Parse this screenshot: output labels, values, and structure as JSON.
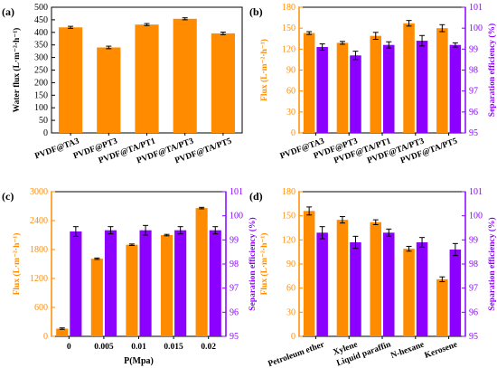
{
  "colors": {
    "orange": "#FF8C00",
    "purple": "#8B00FF",
    "axis": "#000000"
  },
  "chart_data": [
    {
      "panel": "(a)",
      "type": "bar",
      "categories": [
        "PVDF@TA3",
        "PVDF@PT3",
        "PVDF@TA/PT1",
        "PVDF@TA/PT3",
        "PVDF@TA/PT5"
      ],
      "series": [
        {
          "values": [
            420,
            340,
            431,
            454,
            396
          ],
          "errors": [
            4,
            5,
            4,
            4,
            5
          ]
        }
      ],
      "ylabel": "Water flux (L·m⁻²·h⁻¹)",
      "ylim": [
        0,
        500
      ],
      "yticks": [
        "0",
        "50",
        "100",
        "150",
        "200",
        "250",
        "300",
        "350",
        "400",
        "450",
        "500"
      ],
      "xtick_rotation": "slanted"
    },
    {
      "panel": "(b)",
      "type": "bar",
      "categories": [
        "PVDF@TA3",
        "PVDF@PT3",
        "PVDF@TA/PT1",
        "PVDF@TA/PT3",
        "PVDF@TA/PT5"
      ],
      "series": [
        {
          "axis": "left",
          "values": [
            143,
            129,
            139,
            157,
            150
          ],
          "errors": [
            2,
            2,
            5,
            4,
            5
          ]
        },
        {
          "axis": "right",
          "values": [
            99.1,
            98.7,
            99.2,
            99.4,
            99.2
          ],
          "errors": [
            0.15,
            0.2,
            0.15,
            0.25,
            0.1
          ]
        }
      ],
      "ylabel": "Flux (L·m⁻²·h⁻¹)",
      "ylabel_right": "Separation efficiency (%)",
      "ylim": [
        0,
        180
      ],
      "yticks": [
        "0",
        "30",
        "60",
        "90",
        "120",
        "150",
        "180"
      ],
      "ylim_right": [
        95,
        101
      ],
      "yticks_right": [
        "95",
        "96",
        "97",
        "98",
        "99",
        "100",
        "101"
      ]
    },
    {
      "panel": "(c)",
      "type": "bar",
      "categories": [
        "0",
        "0.005",
        "0.01",
        "0.015",
        "0.02"
      ],
      "series": [
        {
          "axis": "left",
          "values": [
            160,
            1610,
            1900,
            2100,
            2660
          ],
          "errors": [
            15,
            15,
            15,
            15,
            15
          ]
        },
        {
          "axis": "right",
          "values": [
            99.35,
            99.4,
            99.4,
            99.4,
            99.4
          ],
          "errors": [
            0.2,
            0.15,
            0.2,
            0.15,
            0.15
          ]
        }
      ],
      "xlabel": "P(Mpa)",
      "ylabel": "Flux (L·m⁻²·h⁻¹)",
      "ylabel_right": "Separation efficiency (%)",
      "ylim": [
        0,
        3000
      ],
      "yticks": [
        "0",
        "600",
        "1200",
        "1800",
        "2400",
        "3000"
      ],
      "ylim_right": [
        95,
        101
      ],
      "yticks_right": [
        "95",
        "96",
        "97",
        "98",
        "99",
        "100",
        "101"
      ]
    },
    {
      "panel": "(d)",
      "type": "bar",
      "categories": [
        "Petroleum ether",
        "Xylene",
        "Liquid paraffin",
        "N-hexane",
        "Kerosene"
      ],
      "series": [
        {
          "axis": "left",
          "values": [
            156,
            145,
            142,
            109,
            71
          ],
          "errors": [
            5,
            4,
            3,
            3,
            3
          ]
        },
        {
          "axis": "right",
          "values": [
            99.3,
            98.9,
            99.3,
            98.9,
            98.6
          ],
          "errors": [
            0.25,
            0.25,
            0.15,
            0.2,
            0.25
          ]
        }
      ],
      "ylabel": "Flux (L·m⁻²·h⁻¹)",
      "ylabel_right": "Separation efficiency (%)",
      "ylim": [
        0,
        180
      ],
      "yticks": [
        "0",
        "30",
        "60",
        "90",
        "120",
        "150",
        "180"
      ],
      "ylim_right": [
        95,
        101
      ],
      "yticks_right": [
        "95",
        "96",
        "97",
        "98",
        "99",
        "100",
        "101"
      ]
    }
  ]
}
